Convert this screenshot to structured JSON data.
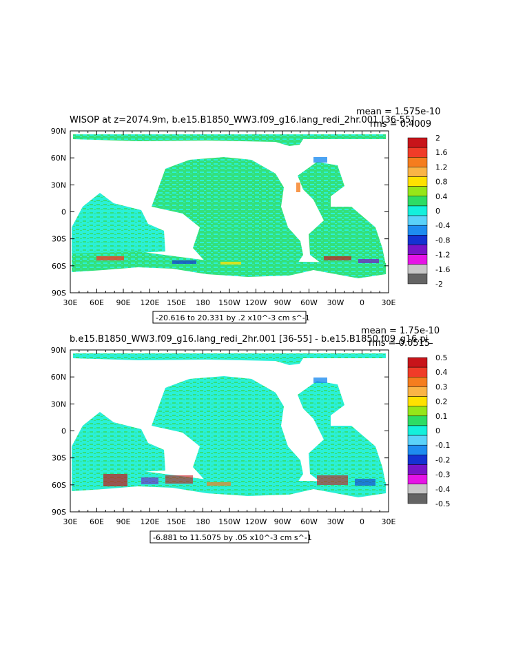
{
  "chart_data": [
    {
      "type": "heatmap",
      "title": "WISOP at z=2074.9m, b.e15.B1850_WW3.f09_g16.lang_redi_2hr.001 [36-55]",
      "stats": {
        "mean": "mean = 1.575e-10",
        "rms": "rms = 0.4009"
      },
      "x_ticks": [
        "30E",
        "60E",
        "90E",
        "120E",
        "150E",
        "180",
        "150W",
        "120W",
        "90W",
        "60W",
        "30W",
        "0",
        "30E"
      ],
      "y_ticks": [
        "90N",
        "60N",
        "30N",
        "0",
        "30S",
        "60S",
        "90S"
      ],
      "colorbar_labels": [
        "2",
        "1.6",
        "1.2",
        "0.8",
        "0.4",
        "0",
        "-0.4",
        "-0.8",
        "-1.2",
        "-1.6",
        "-2"
      ],
      "colorbar_colors": [
        "#c8141a",
        "#f03c28",
        "#f57d1e",
        "#fab446",
        "#ffe100",
        "#96e619",
        "#2ddc64",
        "#14f0dc",
        "#5ad2fa",
        "#1e8cf0",
        "#1432d2",
        "#7814c8",
        "#e614e6",
        "#c8c8c8",
        "#646464"
      ],
      "range_label": "-20.616 to 20.331 by .2 x10^-3 cm s^-1"
    },
    {
      "type": "heatmap",
      "title": "b.e15.B1850_WW3.f09_g16.lang_redi_2hr.001 [36-55] - b.e15.B1850.f09_g16.pi_",
      "stats": {
        "mean": "mean = 1.75e-10",
        "rms": "rms = 0.0515"
      },
      "x_ticks": [
        "30E",
        "60E",
        "90E",
        "120E",
        "150E",
        "180",
        "150W",
        "120W",
        "90W",
        "60W",
        "30W",
        "0",
        "30E"
      ],
      "y_ticks": [
        "90N",
        "60N",
        "30N",
        "0",
        "30S",
        "60S",
        "90S"
      ],
      "colorbar_labels": [
        "0.5",
        "0.4",
        "0.3",
        "0.2",
        "0.1",
        "0",
        "-0.1",
        "-0.2",
        "-0.3",
        "-0.4",
        "-0.5"
      ],
      "colorbar_colors": [
        "#c8141a",
        "#f03c28",
        "#f57d1e",
        "#fab446",
        "#ffe100",
        "#96e619",
        "#2ddc64",
        "#14f0dc",
        "#5ad2fa",
        "#1e8cf0",
        "#1432d2",
        "#7814c8",
        "#e614e6",
        "#c8c8c8",
        "#646464"
      ],
      "range_label": "-6.881 to 11.5075 by .05 x10^-3 cm s^-1"
    }
  ],
  "colors": {
    "ocean_green": "#34e07a",
    "ocean_cyan": "#2af0d8",
    "land": "#ffffff"
  }
}
